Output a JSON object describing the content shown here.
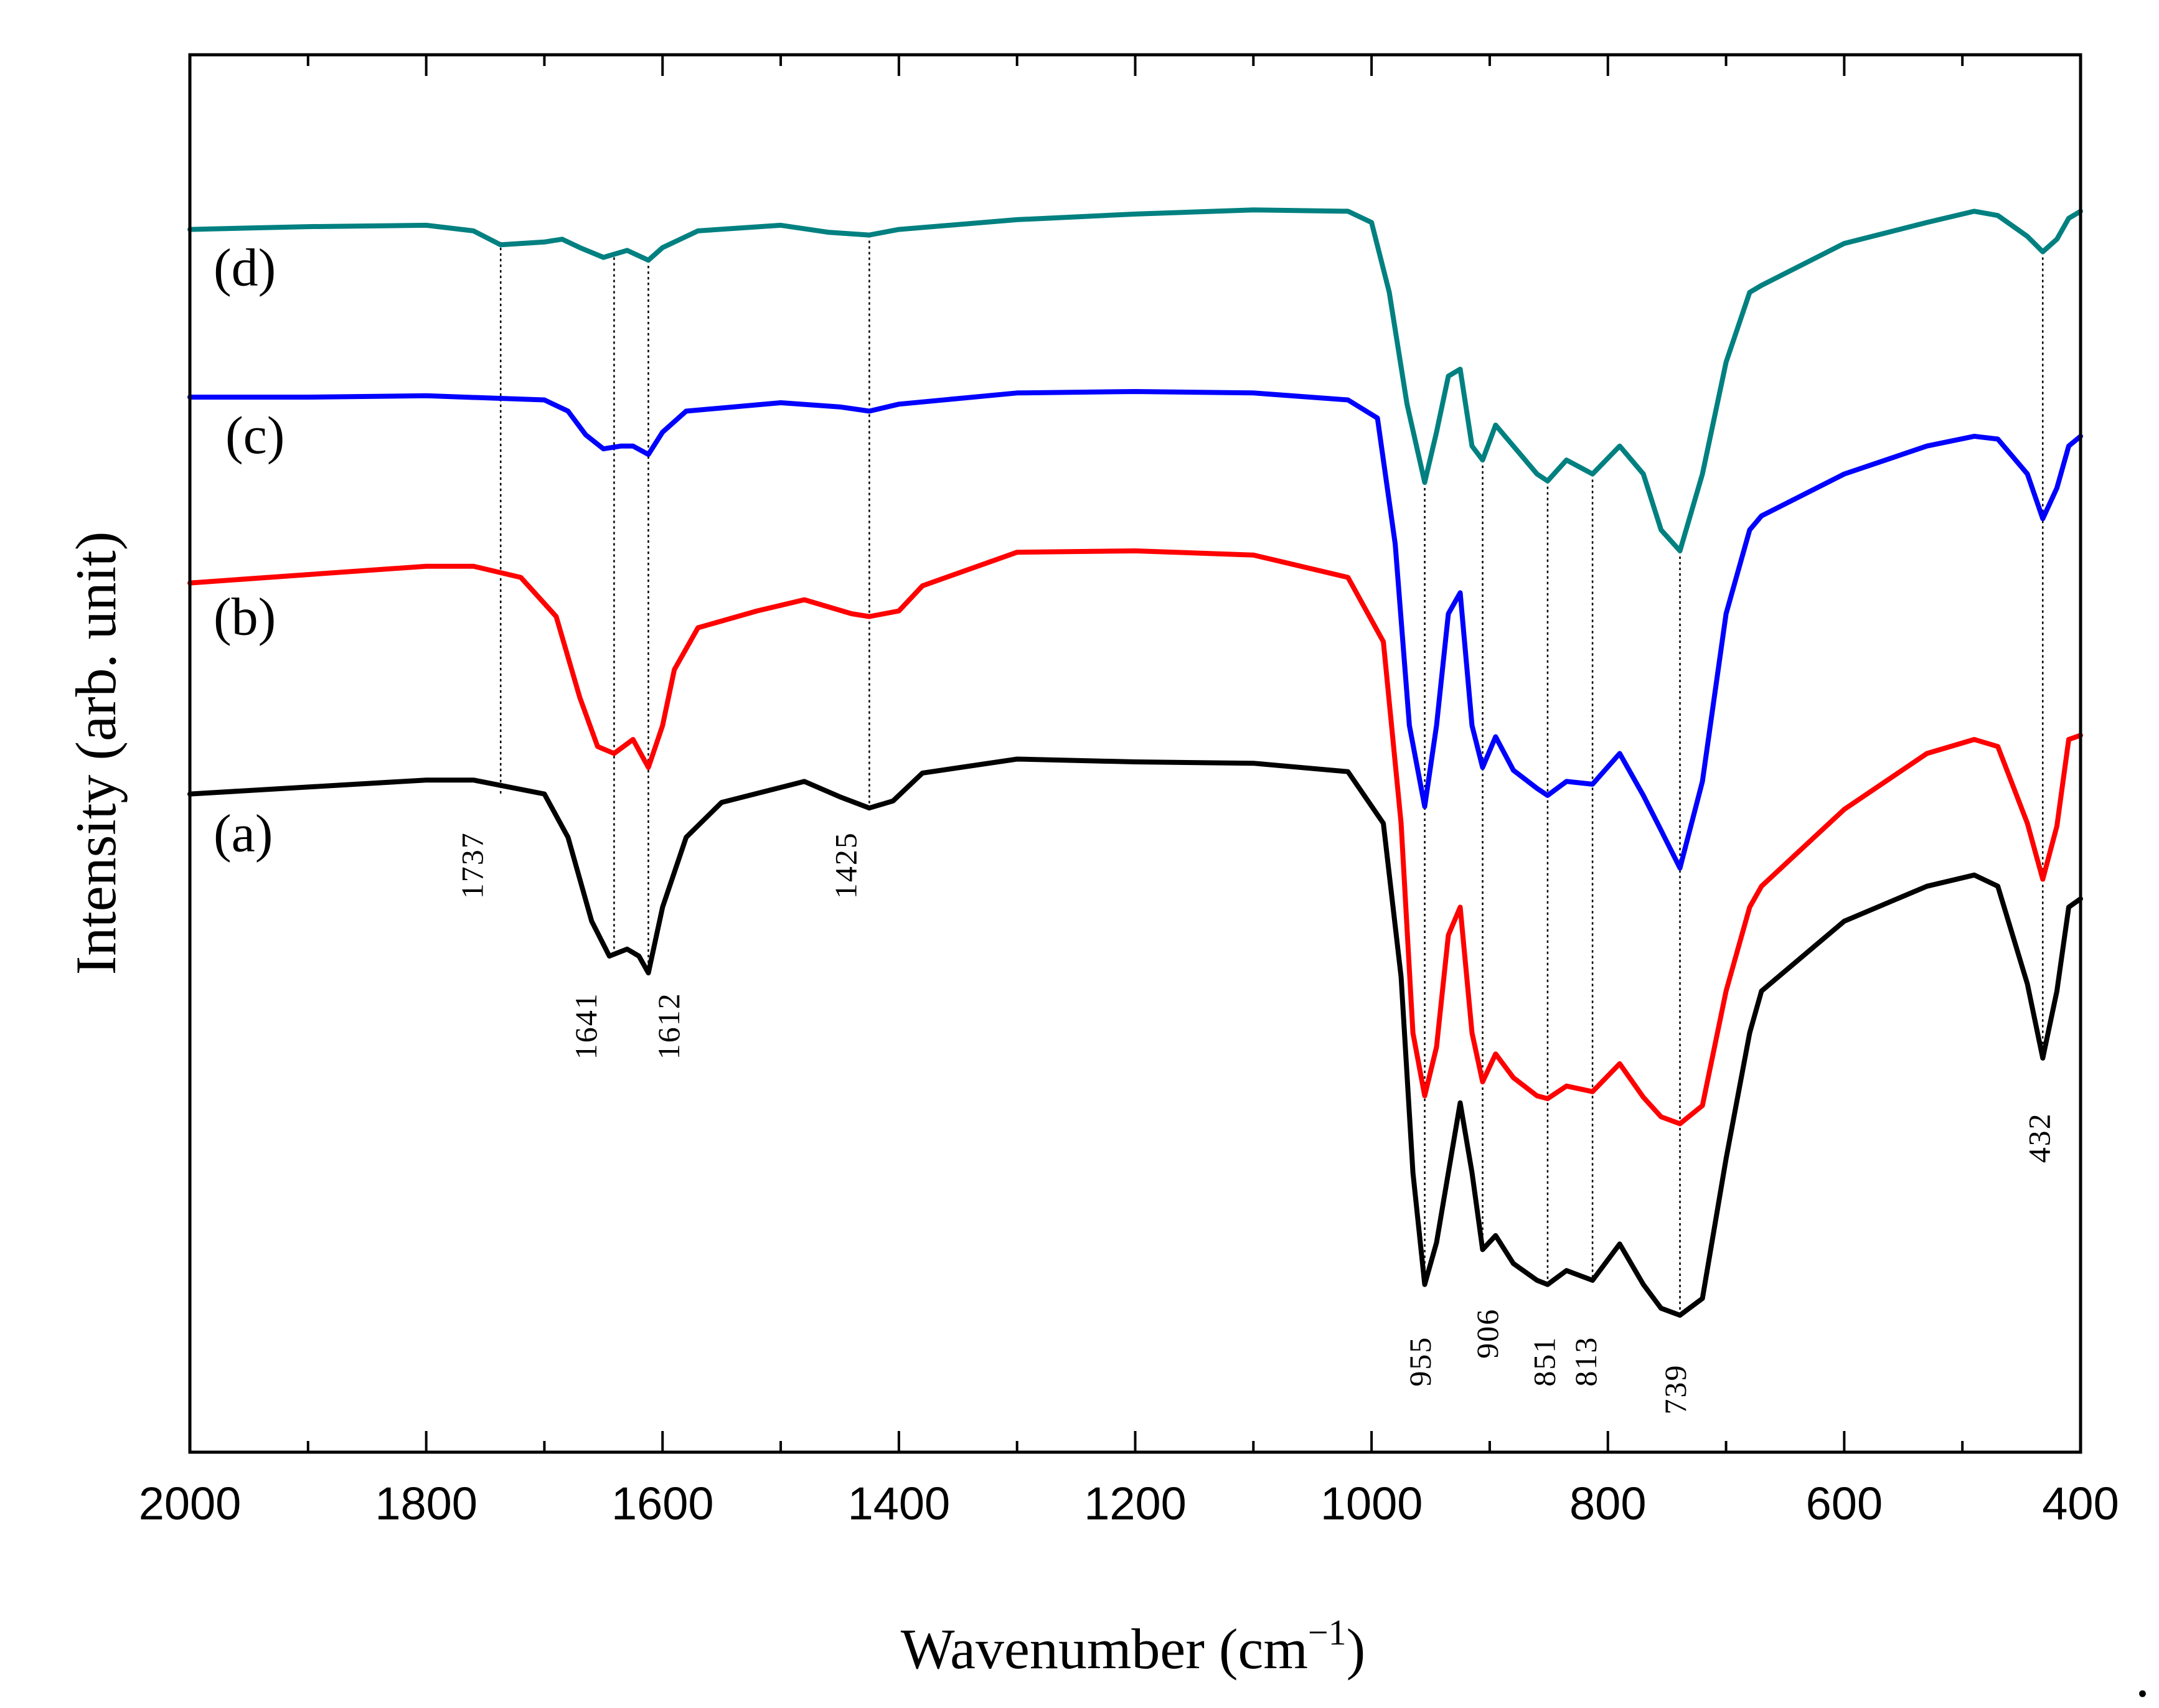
{
  "chart_data": {
    "type": "line",
    "title": "",
    "xlabel": "Wavenumber (cm",
    "xlabel_superscript": "−1",
    "xlabel_close": ")",
    "ylabel": "Intensity (arb. unit)",
    "xlim": [
      2000,
      400
    ],
    "x_reversed": true,
    "ylim": [
      0,
      1
    ],
    "y_ticks_shown": false,
    "x_ticks": [
      2000,
      1800,
      1600,
      1400,
      1200,
      1000,
      800,
      600,
      400
    ],
    "x_minor_step": 100,
    "grid": false,
    "corner_mark": ".",
    "series": [
      {
        "name": "(a)",
        "label": "(a)",
        "color": "#000000",
        "label_x": 1980,
        "label_y": 0.43,
        "points": [
          [
            2000,
            0.471
          ],
          [
            1900,
            0.476
          ],
          [
            1800,
            0.481
          ],
          [
            1760,
            0.481
          ],
          [
            1700,
            0.471
          ],
          [
            1680,
            0.44
          ],
          [
            1660,
            0.38
          ],
          [
            1645,
            0.355
          ],
          [
            1630,
            0.36
          ],
          [
            1620,
            0.355
          ],
          [
            1612,
            0.343
          ],
          [
            1600,
            0.39
          ],
          [
            1580,
            0.44
          ],
          [
            1550,
            0.465
          ],
          [
            1480,
            0.48
          ],
          [
            1450,
            0.469
          ],
          [
            1425,
            0.461
          ],
          [
            1405,
            0.466
          ],
          [
            1380,
            0.486
          ],
          [
            1300,
            0.496
          ],
          [
            1200,
            0.494
          ],
          [
            1100,
            0.493
          ],
          [
            1020,
            0.487
          ],
          [
            990,
            0.45
          ],
          [
            975,
            0.34
          ],
          [
            965,
            0.2
          ],
          [
            955,
            0.12
          ],
          [
            945,
            0.15
          ],
          [
            935,
            0.2
          ],
          [
            925,
            0.25
          ],
          [
            915,
            0.2
          ],
          [
            906,
            0.145
          ],
          [
            895,
            0.155
          ],
          [
            880,
            0.135
          ],
          [
            860,
            0.123
          ],
          [
            851,
            0.12
          ],
          [
            835,
            0.13
          ],
          [
            813,
            0.123
          ],
          [
            790,
            0.149
          ],
          [
            770,
            0.12
          ],
          [
            755,
            0.103
          ],
          [
            739,
            0.098
          ],
          [
            720,
            0.11
          ],
          [
            700,
            0.21
          ],
          [
            680,
            0.3
          ],
          [
            670,
            0.33
          ],
          [
            600,
            0.38
          ],
          [
            530,
            0.405
          ],
          [
            490,
            0.413
          ],
          [
            470,
            0.405
          ],
          [
            445,
            0.335
          ],
          [
            432,
            0.282
          ],
          [
            420,
            0.33
          ],
          [
            410,
            0.39
          ],
          [
            400,
            0.396
          ]
        ]
      },
      {
        "name": "(b)",
        "label": "(b)",
        "color": "#ff0000",
        "label_x": 1980,
        "label_y": 0.585,
        "points": [
          [
            2000,
            0.622
          ],
          [
            1900,
            0.628
          ],
          [
            1800,
            0.634
          ],
          [
            1760,
            0.634
          ],
          [
            1720,
            0.626
          ],
          [
            1690,
            0.598
          ],
          [
            1670,
            0.54
          ],
          [
            1655,
            0.505
          ],
          [
            1641,
            0.5
          ],
          [
            1625,
            0.51
          ],
          [
            1612,
            0.49
          ],
          [
            1600,
            0.52
          ],
          [
            1590,
            0.56
          ],
          [
            1570,
            0.59
          ],
          [
            1520,
            0.602
          ],
          [
            1480,
            0.61
          ],
          [
            1440,
            0.6
          ],
          [
            1425,
            0.598
          ],
          [
            1400,
            0.602
          ],
          [
            1380,
            0.62
          ],
          [
            1300,
            0.644
          ],
          [
            1200,
            0.645
          ],
          [
            1100,
            0.642
          ],
          [
            1020,
            0.626
          ],
          [
            990,
            0.58
          ],
          [
            975,
            0.45
          ],
          [
            965,
            0.3
          ],
          [
            955,
            0.255
          ],
          [
            945,
            0.29
          ],
          [
            935,
            0.37
          ],
          [
            925,
            0.39
          ],
          [
            915,
            0.3
          ],
          [
            906,
            0.265
          ],
          [
            895,
            0.285
          ],
          [
            880,
            0.268
          ],
          [
            860,
            0.255
          ],
          [
            851,
            0.253
          ],
          [
            835,
            0.262
          ],
          [
            813,
            0.258
          ],
          [
            790,
            0.278
          ],
          [
            770,
            0.254
          ],
          [
            755,
            0.24
          ],
          [
            739,
            0.235
          ],
          [
            720,
            0.248
          ],
          [
            700,
            0.33
          ],
          [
            680,
            0.39
          ],
          [
            670,
            0.405
          ],
          [
            600,
            0.46
          ],
          [
            530,
            0.5
          ],
          [
            490,
            0.51
          ],
          [
            470,
            0.505
          ],
          [
            445,
            0.45
          ],
          [
            432,
            0.41
          ],
          [
            420,
            0.448
          ],
          [
            410,
            0.51
          ],
          [
            400,
            0.513
          ]
        ]
      },
      {
        "name": "(c)",
        "label": "(c)",
        "color": "#0000ff",
        "label_x": 1970,
        "label_y": 0.715,
        "points": [
          [
            2000,
            0.755
          ],
          [
            1900,
            0.755
          ],
          [
            1800,
            0.756
          ],
          [
            1700,
            0.753
          ],
          [
            1680,
            0.745
          ],
          [
            1665,
            0.728
          ],
          [
            1650,
            0.718
          ],
          [
            1635,
            0.72
          ],
          [
            1625,
            0.72
          ],
          [
            1612,
            0.714
          ],
          [
            1600,
            0.73
          ],
          [
            1580,
            0.745
          ],
          [
            1500,
            0.751
          ],
          [
            1450,
            0.748
          ],
          [
            1425,
            0.745
          ],
          [
            1400,
            0.75
          ],
          [
            1300,
            0.758
          ],
          [
            1200,
            0.759
          ],
          [
            1100,
            0.758
          ],
          [
            1020,
            0.753
          ],
          [
            995,
            0.74
          ],
          [
            980,
            0.65
          ],
          [
            968,
            0.52
          ],
          [
            955,
            0.462
          ],
          [
            945,
            0.52
          ],
          [
            935,
            0.6
          ],
          [
            925,
            0.615
          ],
          [
            915,
            0.52
          ],
          [
            906,
            0.49
          ],
          [
            895,
            0.512
          ],
          [
            880,
            0.488
          ],
          [
            860,
            0.475
          ],
          [
            851,
            0.47
          ],
          [
            835,
            0.48
          ],
          [
            813,
            0.478
          ],
          [
            790,
            0.5
          ],
          [
            770,
            0.47
          ],
          [
            755,
            0.445
          ],
          [
            739,
            0.418
          ],
          [
            720,
            0.48
          ],
          [
            700,
            0.6
          ],
          [
            680,
            0.66
          ],
          [
            670,
            0.67
          ],
          [
            600,
            0.7
          ],
          [
            530,
            0.72
          ],
          [
            490,
            0.727
          ],
          [
            470,
            0.725
          ],
          [
            445,
            0.7
          ],
          [
            432,
            0.668
          ],
          [
            420,
            0.69
          ],
          [
            410,
            0.72
          ],
          [
            400,
            0.727
          ]
        ]
      },
      {
        "name": "(d)",
        "label": "(d)",
        "color": "#008080",
        "label_x": 1980,
        "label_y": 0.835,
        "points": [
          [
            2000,
            0.875
          ],
          [
            1900,
            0.877
          ],
          [
            1800,
            0.878
          ],
          [
            1760,
            0.874
          ],
          [
            1737,
            0.864
          ],
          [
            1700,
            0.866
          ],
          [
            1685,
            0.868
          ],
          [
            1670,
            0.862
          ],
          [
            1650,
            0.855
          ],
          [
            1630,
            0.86
          ],
          [
            1612,
            0.853
          ],
          [
            1600,
            0.862
          ],
          [
            1570,
            0.874
          ],
          [
            1500,
            0.878
          ],
          [
            1460,
            0.873
          ],
          [
            1425,
            0.871
          ],
          [
            1400,
            0.875
          ],
          [
            1300,
            0.882
          ],
          [
            1200,
            0.886
          ],
          [
            1100,
            0.889
          ],
          [
            1020,
            0.888
          ],
          [
            1000,
            0.88
          ],
          [
            985,
            0.83
          ],
          [
            970,
            0.75
          ],
          [
            955,
            0.694
          ],
          [
            945,
            0.73
          ],
          [
            935,
            0.77
          ],
          [
            925,
            0.775
          ],
          [
            915,
            0.72
          ],
          [
            906,
            0.71
          ],
          [
            895,
            0.735
          ],
          [
            880,
            0.72
          ],
          [
            860,
            0.7
          ],
          [
            851,
            0.695
          ],
          [
            835,
            0.71
          ],
          [
            813,
            0.7
          ],
          [
            790,
            0.72
          ],
          [
            770,
            0.7
          ],
          [
            755,
            0.66
          ],
          [
            739,
            0.645
          ],
          [
            720,
            0.7
          ],
          [
            700,
            0.78
          ],
          [
            680,
            0.83
          ],
          [
            670,
            0.835
          ],
          [
            600,
            0.865
          ],
          [
            530,
            0.88
          ],
          [
            490,
            0.888
          ],
          [
            470,
            0.885
          ],
          [
            445,
            0.87
          ],
          [
            432,
            0.859
          ],
          [
            420,
            0.868
          ],
          [
            410,
            0.883
          ],
          [
            400,
            0.888
          ]
        ]
      }
    ],
    "peak_lines": [
      {
        "x": 1737,
        "y_top": 0.866,
        "y_bottom": 0.47
      },
      {
        "x": 1641,
        "y_top": 0.855,
        "y_bottom": 0.355
      },
      {
        "x": 1612,
        "y_top": 0.853,
        "y_bottom": 0.343
      },
      {
        "x": 1425,
        "y_top": 0.871,
        "y_bottom": 0.461
      },
      {
        "x": 955,
        "y_top": 0.694,
        "y_bottom": 0.12
      },
      {
        "x": 906,
        "y_top": 0.71,
        "y_bottom": 0.145
      },
      {
        "x": 851,
        "y_top": 0.695,
        "y_bottom": 0.12
      },
      {
        "x": 813,
        "y_top": 0.7,
        "y_bottom": 0.123
      },
      {
        "x": 739,
        "y_top": 0.645,
        "y_bottom": 0.098
      },
      {
        "x": 432,
        "y_top": 0.859,
        "y_bottom": 0.282
      }
    ],
    "peak_labels": [
      {
        "text": "1737",
        "x": 1752,
        "y": 0.42
      },
      {
        "text": "1641",
        "x": 1656,
        "y": 0.305
      },
      {
        "text": "1612",
        "x": 1586,
        "y": 0.305
      },
      {
        "text": "1425",
        "x": 1436,
        "y": 0.42
      },
      {
        "text": "955",
        "x": 950,
        "y": 0.065
      },
      {
        "text": "906",
        "x": 893,
        "y": 0.085
      },
      {
        "text": "851",
        "x": 845,
        "y": 0.065
      },
      {
        "text": "813",
        "x": 810,
        "y": 0.065
      },
      {
        "text": "739",
        "x": 734,
        "y": 0.045
      },
      {
        "text": "432",
        "x": 426,
        "y": 0.225
      }
    ]
  }
}
